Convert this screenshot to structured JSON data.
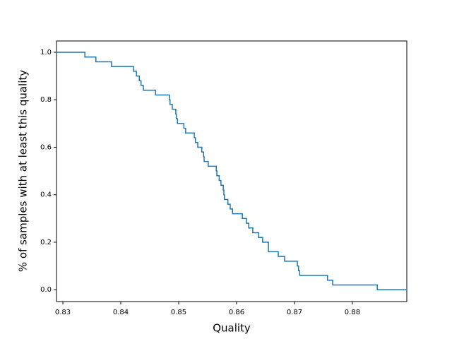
{
  "chart_data": {
    "type": "step",
    "xlabel": "Quality",
    "ylabel": "% of samples with at least this quality",
    "series": [
      {
        "color": "#1f77b4",
        "x": [
          0.8289,
          0.8338,
          0.8357,
          0.8384,
          0.8422,
          0.8427,
          0.8432,
          0.8435,
          0.8439,
          0.846,
          0.8484,
          0.8485,
          0.8489,
          0.8495,
          0.8496,
          0.8498,
          0.8509,
          0.8512,
          0.8527,
          0.8529,
          0.8533,
          0.854,
          0.8543,
          0.8544,
          0.8551,
          0.8565,
          0.8566,
          0.857,
          0.8573,
          0.8577,
          0.8578,
          0.8579,
          0.8585,
          0.8589,
          0.8593,
          0.861,
          0.8617,
          0.8621,
          0.8628,
          0.8638,
          0.8645,
          0.8655,
          0.8672,
          0.8683,
          0.8705,
          0.8707,
          0.8709,
          0.8757,
          0.8766,
          0.8843
        ],
        "values": [
          1.0,
          0.98,
          0.96,
          0.94,
          0.92,
          0.9,
          0.88,
          0.86,
          0.84,
          0.82,
          0.8,
          0.78,
          0.76,
          0.74,
          0.72,
          0.7,
          0.68,
          0.66,
          0.64,
          0.62,
          0.6,
          0.58,
          0.56,
          0.54,
          0.52,
          0.5,
          0.48,
          0.46,
          0.44,
          0.42,
          0.4,
          0.38,
          0.36,
          0.34,
          0.32,
          0.3,
          0.28,
          0.26,
          0.24,
          0.22,
          0.2,
          0.16,
          0.14,
          0.12,
          0.1,
          0.08,
          0.06,
          0.04,
          0.02,
          0.0
        ]
      }
    ],
    "xlim": [
      0.8289,
      0.8894
    ],
    "ylim": [
      -0.05,
      1.0476
    ],
    "xticks": [
      0.83,
      0.84,
      0.85,
      0.86,
      0.87,
      0.88
    ],
    "yticks": [
      {
        "value": 0,
        "label": "0.0"
      },
      0.2,
      0.4,
      0.6,
      0.8,
      {
        "value": 1,
        "label": "1.0"
      }
    ]
  }
}
